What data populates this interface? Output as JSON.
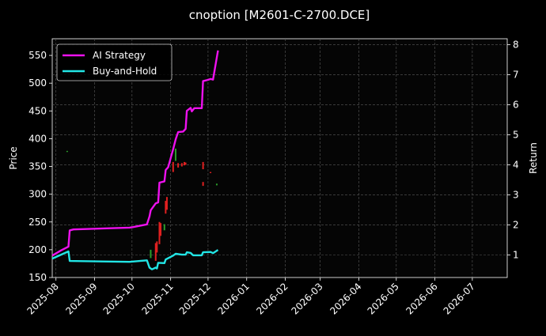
{
  "chart_data": {
    "type": "line",
    "title": "cnoption [M2601-C-2700.DCE]",
    "ylabel_left": "Price",
    "ylabel_right": "Return",
    "xlabel": "",
    "x_ticks": [
      "2025-08",
      "2025-09",
      "2025-10",
      "2025-11",
      "2025-12",
      "2026-01",
      "2026-02",
      "2026-03",
      "2026-04",
      "2026-05",
      "2026-06",
      "2026-07"
    ],
    "xlim": [
      "2025-07-29",
      "2026-07-29"
    ],
    "ylim_left": [
      150,
      580
    ],
    "ylim_right": [
      0.25,
      8.2
    ],
    "y_ticks_left": [
      150,
      200,
      250,
      300,
      350,
      400,
      450,
      500,
      550
    ],
    "y_ticks_right": [
      1,
      2,
      3,
      4,
      5,
      6,
      7,
      8
    ],
    "grid": true,
    "legend_position": "top-left",
    "series": [
      {
        "name": "AI Strategy",
        "color": "#ee11ee",
        "axis": "right",
        "points": [
          [
            "2025-07-29",
            0.98
          ],
          [
            "2025-08-05",
            1.15
          ],
          [
            "2025-08-11",
            1.28
          ],
          [
            "2025-08-12",
            1.82
          ],
          [
            "2025-08-15",
            1.85
          ],
          [
            "2025-09-29",
            1.91
          ],
          [
            "2025-10-02",
            1.93
          ],
          [
            "2025-10-13",
            2.02
          ],
          [
            "2025-10-15",
            2.28
          ],
          [
            "2025-10-16",
            2.49
          ],
          [
            "2025-10-20",
            2.72
          ],
          [
            "2025-10-22",
            2.75
          ],
          [
            "2025-10-23",
            3.41
          ],
          [
            "2025-10-27",
            3.45
          ],
          [
            "2025-10-28",
            3.83
          ],
          [
            "2025-10-30",
            3.92
          ],
          [
            "2025-11-03",
            4.52
          ],
          [
            "2025-11-05",
            4.85
          ],
          [
            "2025-11-07",
            5.09
          ],
          [
            "2025-11-11",
            5.11
          ],
          [
            "2025-11-13",
            5.2
          ],
          [
            "2025-11-14",
            5.8
          ],
          [
            "2025-11-17",
            5.9
          ],
          [
            "2025-11-18",
            5.78
          ],
          [
            "2025-11-20",
            5.89
          ],
          [
            "2025-11-26",
            5.89
          ],
          [
            "2025-11-27",
            6.79
          ],
          [
            "2025-12-01",
            6.83
          ],
          [
            "2025-12-03",
            6.86
          ],
          [
            "2025-12-05",
            6.84
          ],
          [
            "2025-12-09",
            7.81
          ]
        ]
      },
      {
        "name": "Buy-and-Hold",
        "color": "#22e5e5",
        "axis": "right",
        "points": [
          [
            "2025-07-29",
            0.88
          ],
          [
            "2025-08-11",
            1.12
          ],
          [
            "2025-08-12",
            0.8
          ],
          [
            "2025-09-29",
            0.77
          ],
          [
            "2025-10-13",
            0.82
          ],
          [
            "2025-10-15",
            0.58
          ],
          [
            "2025-10-17",
            0.52
          ],
          [
            "2025-10-20",
            0.58
          ],
          [
            "2025-10-21",
            0.55
          ],
          [
            "2025-10-22",
            0.74
          ],
          [
            "2025-10-27",
            0.73
          ],
          [
            "2025-10-28",
            0.85
          ],
          [
            "2025-11-03",
            0.98
          ],
          [
            "2025-11-05",
            1.04
          ],
          [
            "2025-11-10",
            1.01
          ],
          [
            "2025-11-13",
            1.01
          ],
          [
            "2025-11-14",
            1.09
          ],
          [
            "2025-11-17",
            1.07
          ],
          [
            "2025-11-19",
            0.99
          ],
          [
            "2025-11-26",
            0.99
          ],
          [
            "2025-11-27",
            1.09
          ],
          [
            "2025-12-03",
            1.1
          ],
          [
            "2025-12-05",
            1.06
          ],
          [
            "2025-12-09",
            1.17
          ]
        ]
      }
    ],
    "candles": [
      {
        "x": "2025-08-10",
        "low": 376,
        "high": 378,
        "color": "#2a9d2a"
      },
      {
        "x": "2025-10-16",
        "low": 185,
        "high": 200,
        "color": "#2a9d2a"
      },
      {
        "x": "2025-10-20",
        "low": 180,
        "high": 212,
        "color": "#e02020"
      },
      {
        "x": "2025-10-21",
        "low": 195,
        "high": 215,
        "color": "#e02020"
      },
      {
        "x": "2025-10-23",
        "low": 210,
        "high": 250,
        "color": "#e02020"
      },
      {
        "x": "2025-10-24",
        "low": 225,
        "high": 248,
        "color": "#e02020"
      },
      {
        "x": "2025-10-27",
        "low": 235,
        "high": 246,
        "color": "#2a9d2a"
      },
      {
        "x": "2025-10-28",
        "low": 265,
        "high": 288,
        "color": "#e02020"
      },
      {
        "x": "2025-10-29",
        "low": 272,
        "high": 295,
        "color": "#e02020"
      },
      {
        "x": "2025-11-03",
        "low": 340,
        "high": 358,
        "color": "#e02020"
      },
      {
        "x": "2025-11-05",
        "low": 360,
        "high": 382,
        "color": "#2a9d2a"
      },
      {
        "x": "2025-11-07",
        "low": 348,
        "high": 356,
        "color": "#e02020"
      },
      {
        "x": "2025-11-10",
        "low": 350,
        "high": 356,
        "color": "#e02020"
      },
      {
        "x": "2025-11-12",
        "low": 352,
        "high": 358,
        "color": "#e02020"
      },
      {
        "x": "2025-11-13",
        "low": 353,
        "high": 357,
        "color": "#e02020"
      },
      {
        "x": "2025-11-27",
        "low": 345,
        "high": 358,
        "color": "#e02020"
      },
      {
        "x": "2025-11-27",
        "low": 315,
        "high": 322,
        "color": "#e02020"
      },
      {
        "x": "2025-12-03",
        "low": 338,
        "high": 340,
        "color": "#e02020"
      },
      {
        "x": "2025-12-08",
        "low": 316,
        "high": 319,
        "color": "#2a9d2a"
      }
    ]
  }
}
